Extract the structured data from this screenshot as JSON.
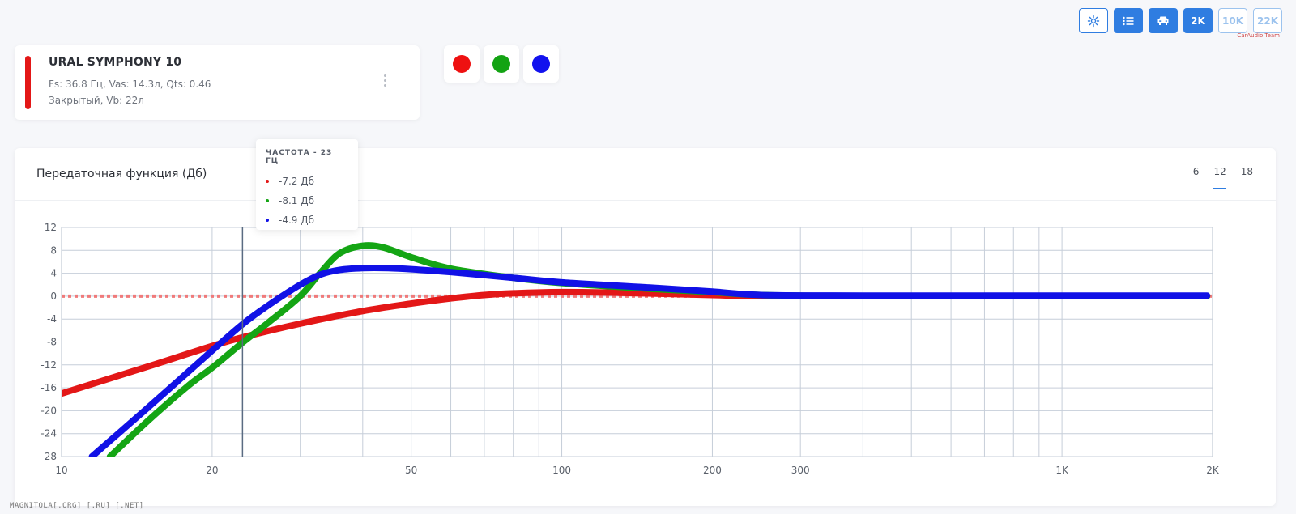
{
  "toolbar": {
    "buttons": [
      {
        "icon": "gear-icon",
        "label": "⚙",
        "style": "outline"
      },
      {
        "icon": "list-icon",
        "label": "≔",
        "style": "filled"
      },
      {
        "icon": "car-icon",
        "label": "🚗",
        "style": "filled"
      },
      {
        "icon": "",
        "label": "2K",
        "style": "filled"
      },
      {
        "icon": "",
        "label": "10K",
        "style": "faded"
      },
      {
        "icon": "",
        "label": "22K",
        "style": "faded"
      }
    ],
    "logo_text": "CarAudio Team"
  },
  "subwoofer": {
    "name": "URAL SYMPHONY 10",
    "params": "Fs: 36.8 Гц, Vas: 14.3л, Qts: 0.46",
    "box": "Закрытый, Vb: 22л",
    "color": "#e31717"
  },
  "color_swatches": [
    "#ee1111",
    "#13a313",
    "#1212ee"
  ],
  "chart_panel": {
    "title": "Передаточная функция (Дб)",
    "order_options": [
      "6",
      "12",
      "18"
    ],
    "active_order": "12"
  },
  "tooltip": {
    "title": "ЧАСТОТА - 23 ГЦ",
    "rows": [
      {
        "color": "#e31717",
        "text": "-7.2 Дб"
      },
      {
        "color": "#14a514",
        "text": "-8.1 Дб"
      },
      {
        "color": "#1111e6",
        "text": "-4.9 Дб"
      }
    ]
  },
  "chart_data": {
    "type": "line",
    "title": "Передаточная функция (Дб)",
    "xscale": "log",
    "xlim": [
      10,
      2000
    ],
    "ylim": [
      -28,
      12
    ],
    "xticks": [
      {
        "v": 10,
        "label": "10"
      },
      {
        "v": 20,
        "label": "20"
      },
      {
        "v": 50,
        "label": "50"
      },
      {
        "v": 100,
        "label": "100"
      },
      {
        "v": 200,
        "label": "200"
      },
      {
        "v": 300,
        "label": "300"
      },
      {
        "v": 1000,
        "label": "1K"
      },
      {
        "v": 2000,
        "label": "2K"
      }
    ],
    "yticks": [
      12,
      8,
      4,
      0,
      -4,
      -8,
      -12,
      -16,
      -20,
      -24,
      -28
    ],
    "grid": true,
    "reference_line": 0,
    "cursor_x": 23,
    "series": [
      {
        "color": "#e31717",
        "points": [
          [
            10,
            -17
          ],
          [
            15,
            -12.2
          ],
          [
            20,
            -8.7
          ],
          [
            23,
            -7.2
          ],
          [
            30,
            -4.8
          ],
          [
            40,
            -2.6
          ],
          [
            50,
            -1.3
          ],
          [
            60,
            -0.4
          ],
          [
            70,
            0.2
          ],
          [
            80,
            0.5
          ],
          [
            100,
            0.7
          ],
          [
            130,
            0.6
          ],
          [
            200,
            0.2
          ],
          [
            250,
            0
          ],
          [
            400,
            0
          ],
          [
            1000,
            0
          ],
          [
            1950,
            0
          ]
        ]
      },
      {
        "color": "#14a514",
        "points": [
          [
            12.5,
            -28
          ],
          [
            15,
            -21.5
          ],
          [
            18,
            -15.5
          ],
          [
            20,
            -12.5
          ],
          [
            23,
            -8.1
          ],
          [
            26,
            -4.5
          ],
          [
            30,
            0
          ],
          [
            33,
            4.2
          ],
          [
            36,
            7.5
          ],
          [
            40,
            8.8
          ],
          [
            44,
            8.5
          ],
          [
            50,
            6.8
          ],
          [
            60,
            4.8
          ],
          [
            80,
            3.2
          ],
          [
            100,
            2.3
          ],
          [
            150,
            1.3
          ],
          [
            200,
            0.7
          ],
          [
            250,
            0.2
          ],
          [
            400,
            0
          ],
          [
            1000,
            0
          ],
          [
            1950,
            0
          ]
        ]
      },
      {
        "color": "#1111e6",
        "points": [
          [
            11.5,
            -28
          ],
          [
            14,
            -21.5
          ],
          [
            17,
            -15
          ],
          [
            20,
            -9.5
          ],
          [
            23,
            -4.9
          ],
          [
            26,
            -1.5
          ],
          [
            30,
            2
          ],
          [
            33,
            3.8
          ],
          [
            36,
            4.6
          ],
          [
            40,
            4.9
          ],
          [
            45,
            4.9
          ],
          [
            50,
            4.7
          ],
          [
            60,
            4.2
          ],
          [
            80,
            3.2
          ],
          [
            100,
            2.4
          ],
          [
            150,
            1.5
          ],
          [
            200,
            0.8
          ],
          [
            250,
            0.2
          ],
          [
            400,
            0.1
          ],
          [
            1000,
            0.1
          ],
          [
            1950,
            0.1
          ]
        ]
      }
    ]
  },
  "footer_watermark": "MAGNITOLA[.ORG] [.RU] [.NET]"
}
